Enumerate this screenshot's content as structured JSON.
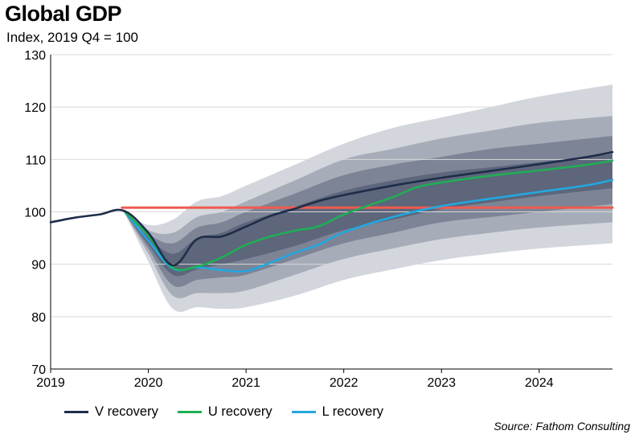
{
  "header": {
    "title": "Global GDP",
    "subtitle": "Index, 2019 Q4 = 100"
  },
  "source": "Source: Fathom Consulting",
  "chart_data": {
    "type": "line",
    "title": "Global GDP",
    "subtitle": "Index, 2019 Q4 = 100",
    "xlabel": "",
    "ylabel": "",
    "xlim": [
      2019.0,
      2024.75
    ],
    "ylim": [
      70,
      130
    ],
    "x_ticks": [
      2019,
      2020,
      2021,
      2022,
      2023,
      2024
    ],
    "y_ticks": [
      70,
      80,
      90,
      100,
      110,
      120,
      130
    ],
    "grid": "horizontal",
    "legend_position": "bottom",
    "colors": {
      "V recovery": "#1f2d4a",
      "U recovery": "#1fae55",
      "L recovery": "#22a8e0",
      "reference": "#f05a4f",
      "fan": [
        "#d3d6dc",
        "#a7adb8",
        "#7d8496",
        "#5d667a"
      ]
    },
    "series": [
      {
        "name": "V recovery",
        "x": [
          2019.0,
          2019.25,
          2019.5,
          2019.75,
          2020.0,
          2020.25,
          2020.5,
          2020.75,
          2021.0,
          2021.25,
          2021.5,
          2021.75,
          2022.0,
          2022.5,
          2023.0,
          2023.5,
          2024.0,
          2024.5,
          2024.75
        ],
        "values": [
          98.0,
          98.9,
          99.5,
          100.2,
          96.0,
          89.8,
          94.8,
          95.3,
          97.2,
          99.2,
          100.6,
          102.1,
          103.2,
          105.0,
          106.5,
          107.8,
          109.1,
          110.5,
          111.4
        ]
      },
      {
        "name": "U recovery",
        "x": [
          2019.75,
          2020.0,
          2020.25,
          2020.5,
          2020.75,
          2021.0,
          2021.25,
          2021.5,
          2021.75,
          2022.0,
          2022.25,
          2022.5,
          2022.75,
          2023.0,
          2023.5,
          2024.0,
          2024.5,
          2024.75
        ],
        "values": [
          100.2,
          95.5,
          89.4,
          89.6,
          91.3,
          93.7,
          95.3,
          96.4,
          97.3,
          99.5,
          101.2,
          102.8,
          104.7,
          105.6,
          106.9,
          107.9,
          109.0,
          109.8
        ]
      },
      {
        "name": "L recovery",
        "x": [
          2019.75,
          2020.0,
          2020.25,
          2020.5,
          2020.75,
          2021.0,
          2021.25,
          2021.5,
          2021.75,
          2022.0,
          2022.5,
          2023.0,
          2023.5,
          2024.0,
          2024.5,
          2024.75
        ],
        "values": [
          100.2,
          94.5,
          89.2,
          89.4,
          88.9,
          88.7,
          90.3,
          92.2,
          93.8,
          96.1,
          99.0,
          101.1,
          102.5,
          103.8,
          105.1,
          106.1
        ]
      },
      {
        "name": "",
        "x": [
          2019.73,
          2024.75
        ],
        "values": [
          100.8,
          100.8
        ]
      }
    ],
    "fan_bands": {
      "x": [
        2019.75,
        2020.0,
        2020.25,
        2020.5,
        2020.75,
        2021.0,
        2021.5,
        2022.0,
        2022.5,
        2023.0,
        2023.5,
        2024.0,
        2024.75
      ],
      "bands": [
        {
          "lower": [
            100,
            90.5,
            81.5,
            81.8,
            81.5,
            81.8,
            84.0,
            87.0,
            89.0,
            90.8,
            92.0,
            93.0,
            94.0
          ],
          "upper": [
            100,
            97.5,
            98.5,
            102.0,
            103.0,
            105.0,
            109.0,
            113.0,
            116.0,
            118.0,
            120.0,
            122.0,
            124.3
          ]
        },
        {
          "lower": [
            100,
            92.0,
            84.0,
            84.5,
            84.5,
            85.0,
            88.0,
            91.0,
            93.0,
            94.8,
            96.0,
            97.0,
            98.0
          ],
          "upper": [
            100,
            96.5,
            96.0,
            99.0,
            100.0,
            102.0,
            106.0,
            110.0,
            112.0,
            114.0,
            115.5,
            117.0,
            118.3
          ]
        },
        {
          "lower": [
            100,
            93.0,
            86.0,
            87.0,
            87.5,
            88.0,
            91.0,
            94.0,
            96.0,
            98.0,
            99.0,
            100.0,
            101.5
          ],
          "upper": [
            100,
            95.8,
            94.0,
            97.0,
            98.0,
            100.0,
            103.5,
            107.0,
            109.0,
            110.5,
            112.0,
            113.0,
            114.5
          ]
        },
        {
          "lower": [
            100,
            93.8,
            88.0,
            89.0,
            90.0,
            91.0,
            93.5,
            96.5,
            98.5,
            100.5,
            101.8,
            103.0,
            104.5
          ],
          "upper": [
            100,
            95.2,
            92.0,
            95.0,
            96.0,
            98.0,
            101.0,
            104.0,
            106.0,
            107.5,
            108.5,
            109.5,
            111.0
          ]
        }
      ]
    }
  }
}
